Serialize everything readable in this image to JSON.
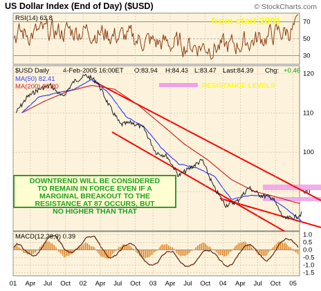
{
  "header": {
    "title": "US Dollar Index (End of Day) ($USD)",
    "watermark": "© StockCharts.com"
  },
  "rsi_panel": {
    "label": "RSI(14) 63.8",
    "badge": "from start 2001",
    "badge_color": "#ffff00",
    "ticks": [
      "70",
      "50",
      "30"
    ]
  },
  "price_panel": {
    "symbol": "$USD Daily",
    "date": "4-Feb-2005 16:00ET",
    "open": "O:83.94",
    "high": "H:84.43",
    "low": "L:83.47",
    "last": "Last:84.39",
    "chg_label": "Chg:",
    "chg_value": "+0.46",
    "ma50": "MA(50) 82.41",
    "ma200": "MA(200) 86.80",
    "resistance_label": "RESISTANCE LEVELS",
    "resistance_color": "#f0a0e8",
    "ticks": [
      "120",
      "110",
      "100",
      "90"
    ]
  },
  "macd_panel": {
    "label": "MACD(12,26,9) 0.39",
    "ticks": [
      "1.0",
      "0.5",
      "0.0",
      "-0.5",
      "-1.0",
      "-1.5"
    ]
  },
  "annotation": {
    "lines": [
      "DOWNTREND WILL BE CONSIDERED",
      "TO REMAIN IN FORCE EVEN IF A",
      "MARGINAL BREAKOUT TO THE",
      "RESISTANCE AT 87 OCCURS, BUT",
      "NO HIGHER THAN THAT"
    ]
  },
  "x_axis": {
    "labels": [
      "01",
      "Apr",
      "Jul",
      "Oct",
      "02",
      "Apr",
      "Jul",
      "Oct",
      "03",
      "Apr",
      "Jul",
      "Oct",
      "04",
      "Apr",
      "Jul",
      "Oct",
      "05"
    ]
  },
  "colors": {
    "panel_bg": "#fdf3dc",
    "price_line": "#202020",
    "ma50": "#3040ff",
    "ma200": "#d02020",
    "trendline": "#ff0000",
    "chg_up": "#00a000",
    "rsi_line": "#8b3a10",
    "macd_line": "#6b2a10",
    "macd_hist": "#e08a30"
  },
  "chart_data": [
    {
      "type": "line",
      "title": "US Dollar Index (End of Day) ($USD)",
      "series": [
        {
          "name": "$USD Daily",
          "x": [
            "2001-01",
            "2001-03",
            "2001-05",
            "2001-07",
            "2001-09",
            "2001-11",
            "2002-01",
            "2002-03",
            "2002-05",
            "2002-07",
            "2002-09",
            "2002-11",
            "2003-01",
            "2003-03",
            "2003-05",
            "2003-07",
            "2003-09",
            "2003-11",
            "2004-01",
            "2004-03",
            "2004-05",
            "2004-07",
            "2004-09",
            "2004-11",
            "2005-01",
            "2005-02"
          ],
          "values": [
            110,
            114,
            116,
            117,
            114,
            118,
            119.5,
            118,
            112,
            107,
            107.5,
            106,
            100,
            99,
            94,
            96,
            98,
            91,
            86.5,
            87.5,
            91,
            89,
            88.5,
            83,
            83.5,
            84.39
          ]
        },
        {
          "name": "MA(50)",
          "x": [
            "2001-02",
            "2001-05",
            "2001-08",
            "2001-11",
            "2002-02",
            "2002-05",
            "2002-08",
            "2002-11",
            "2003-02",
            "2003-05",
            "2003-08",
            "2003-11",
            "2004-02",
            "2004-05",
            "2004-08",
            "2004-11",
            "2005-02"
          ],
          "values": [
            110,
            114,
            115,
            116,
            118.5,
            115,
            109,
            106.5,
            101,
            97,
            96,
            94,
            88,
            89,
            89,
            86,
            82.41
          ]
        },
        {
          "name": "MA(200)",
          "x": [
            "2001-02",
            "2001-06",
            "2001-10",
            "2002-02",
            "2002-06",
            "2002-10",
            "2003-02",
            "2003-06",
            "2003-10",
            "2004-02",
            "2004-06",
            "2004-10",
            "2005-02"
          ],
          "values": [
            110,
            113,
            115.5,
            117,
            116,
            112,
            107,
            102,
            98,
            93,
            90,
            88.5,
            86.8
          ]
        }
      ],
      "ylim": [
        80,
        122
      ],
      "resistance_levels": [
        87,
        85.5
      ]
    },
    {
      "type": "line",
      "title": "RSI(14) 63.8",
      "series": [
        {
          "name": "RSI(14)",
          "x": [
            "2001-01",
            "2002-01",
            "2003-01",
            "2004-01",
            "2005-02"
          ],
          "values": [
            55,
            60,
            45,
            40,
            63.8
          ]
        }
      ],
      "ylim": [
        20,
        80
      ]
    },
    {
      "type": "line",
      "title": "MACD(12,26,9) 0.39",
      "series": [
        {
          "name": "MACD(12,26,9)",
          "x": [
            "2001-01",
            "2002-01",
            "2003-01",
            "2004-01",
            "2005-02"
          ],
          "values": [
            0.2,
            0.4,
            -0.6,
            -0.5,
            0.39
          ]
        }
      ],
      "ylim": [
        -1.7,
        1.2
      ]
    }
  ]
}
